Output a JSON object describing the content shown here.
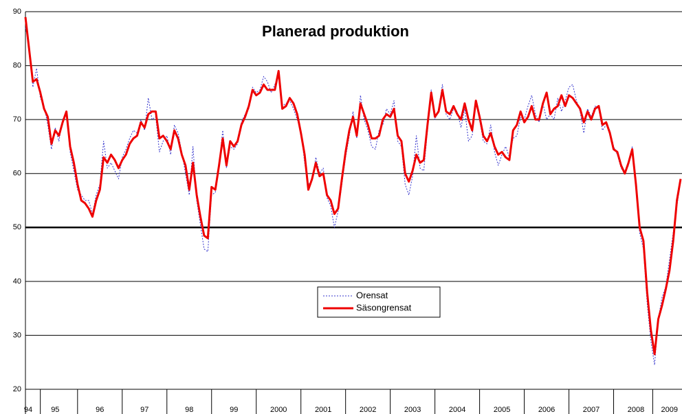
{
  "chart_data": {
    "type": "line",
    "title": "Planerad produktion",
    "categories": [
      "94",
      null,
      null,
      null,
      null,
      null,
      null,
      null,
      "95",
      null,
      null,
      null,
      null,
      null,
      null,
      null,
      null,
      null,
      null,
      null,
      "96",
      null,
      null,
      null,
      null,
      null,
      null,
      null,
      null,
      null,
      null,
      null,
      "97",
      null,
      null,
      null,
      null,
      null,
      null,
      null,
      null,
      null,
      null,
      null,
      "98",
      null,
      null,
      null,
      null,
      null,
      null,
      null,
      null,
      null,
      null,
      null,
      "99",
      null,
      null,
      null,
      null,
      null,
      null,
      null,
      null,
      null,
      null,
      null,
      "2000",
      null,
      null,
      null,
      null,
      null,
      null,
      null,
      null,
      null,
      null,
      null,
      "2001",
      null,
      null,
      null,
      null,
      null,
      null,
      null,
      null,
      null,
      null,
      null,
      "2002",
      null,
      null,
      null,
      null,
      null,
      null,
      null,
      null,
      null,
      null,
      null,
      "2003",
      null,
      null,
      null,
      null,
      null,
      null,
      null,
      null,
      null,
      null,
      null,
      "2004",
      null,
      null,
      null,
      null,
      null,
      null,
      null,
      null,
      null,
      null,
      null,
      "2005",
      null,
      null,
      null,
      null,
      null,
      null,
      null,
      null,
      null,
      null,
      null,
      "2006",
      null,
      null,
      null,
      null,
      null,
      null,
      null,
      null,
      null,
      null,
      null,
      "2007",
      null,
      null,
      null,
      null,
      null,
      null,
      null,
      null,
      null,
      null,
      null,
      "2008",
      null,
      null,
      null,
      null,
      null,
      null,
      null,
      null,
      "2009",
      null,
      null,
      null
    ],
    "series": [
      {
        "name": "Orensat",
        "color": "#3333cc",
        "style": "dotted",
        "values": [
          87,
          84,
          76,
          79.5,
          74,
          72.5,
          69,
          64.5,
          68.5,
          66,
          70,
          71,
          64,
          60.5,
          57,
          56,
          55,
          55,
          52.5,
          56,
          58,
          66,
          61,
          62,
          60.5,
          59,
          63,
          64.5,
          66.5,
          68,
          67.5,
          70,
          68,
          74,
          70,
          70.5,
          64,
          66,
          67,
          63.5,
          69,
          67.5,
          64,
          60,
          56,
          65,
          55,
          50.5,
          46,
          45.5,
          56,
          56.5,
          62,
          68,
          61,
          65,
          64.5,
          65.5,
          69.5,
          71,
          72,
          76,
          75,
          75.5,
          78,
          77,
          75,
          76.5,
          78,
          72.5,
          73,
          73.5,
          72,
          70,
          68,
          62,
          58,
          58.5,
          63,
          60,
          61,
          55.5,
          54,
          50,
          53,
          58,
          63,
          67,
          71.5,
          66.5,
          74.5,
          70,
          68,
          65,
          64.5,
          68,
          69,
          72,
          71,
          73.5,
          66,
          65,
          58,
          56,
          59.5,
          67,
          61,
          60.5,
          68,
          75.5,
          70,
          72,
          76.5,
          71,
          70,
          72,
          71.5,
          68.5,
          72,
          66,
          67,
          73,
          70,
          66,
          65.5,
          69,
          64,
          61.5,
          63.5,
          65,
          63,
          66.5,
          67,
          70.5,
          70,
          72.5,
          74.5,
          71,
          69.5,
          73,
          70,
          71,
          70,
          74,
          71.5,
          73.5,
          76,
          76.5,
          73.5,
          71.5,
          67.5,
          72,
          70.5,
          72.5,
          72,
          68,
          69,
          68,
          65,
          63.5,
          61,
          60,
          61.5,
          65,
          57,
          49,
          46,
          36,
          29,
          24.5,
          33,
          37,
          39,
          44,
          49,
          54,
          58.5
        ]
      },
      {
        "name": "Säsongrensat",
        "color": "#ee0000",
        "style": "solid",
        "values": [
          89,
          83,
          77,
          77.5,
          75,
          72,
          70.5,
          65.5,
          68,
          67,
          69.5,
          71.5,
          65,
          62,
          58,
          55,
          54.5,
          53.5,
          52,
          55,
          57,
          63,
          62,
          63.5,
          62.5,
          61,
          62.5,
          63.5,
          65.5,
          66.5,
          67,
          69.5,
          68.5,
          71,
          71.5,
          71.5,
          66.5,
          67,
          66,
          64.5,
          68,
          66.5,
          63.5,
          61.5,
          57,
          62,
          56,
          52,
          48.5,
          48,
          57.5,
          57,
          61.5,
          66.5,
          61.5,
          66,
          65,
          66,
          69,
          70.5,
          72.5,
          75.5,
          74.5,
          75,
          76.5,
          75.5,
          75.5,
          75.5,
          79,
          72,
          72.5,
          74,
          73,
          71,
          67.5,
          63.5,
          57,
          59,
          62,
          59.5,
          60,
          56,
          55,
          52.5,
          53.5,
          59,
          64,
          68,
          70.5,
          67,
          73,
          71,
          69,
          66.5,
          66.5,
          67,
          70,
          71,
          70.5,
          72,
          67,
          66,
          60,
          58.5,
          60.5,
          63.5,
          62,
          62.5,
          69,
          75,
          70.5,
          71.5,
          75.5,
          71.5,
          71,
          72.5,
          71,
          70,
          73,
          70,
          68,
          73.5,
          70.5,
          67,
          66,
          67.5,
          65,
          63.5,
          64,
          63,
          62.5,
          68,
          69,
          71.5,
          69.5,
          70.5,
          72.5,
          70,
          70,
          73,
          75,
          71,
          72,
          72.5,
          74.5,
          72.5,
          74.5,
          74,
          73,
          72,
          69.5,
          71.5,
          70,
          72,
          72.5,
          69,
          69.5,
          67.5,
          64.5,
          64,
          61.5,
          60,
          62,
          64.5,
          58,
          50,
          47.5,
          38,
          31,
          26.5,
          33,
          35.5,
          38.5,
          42,
          47.5,
          55,
          59
        ]
      }
    ],
    "ylim": [
      20,
      90
    ],
    "yticks": [
      20,
      30,
      40,
      50,
      60,
      70,
      80,
      90
    ],
    "grid": true,
    "reference_line": 50,
    "legend": "center"
  }
}
